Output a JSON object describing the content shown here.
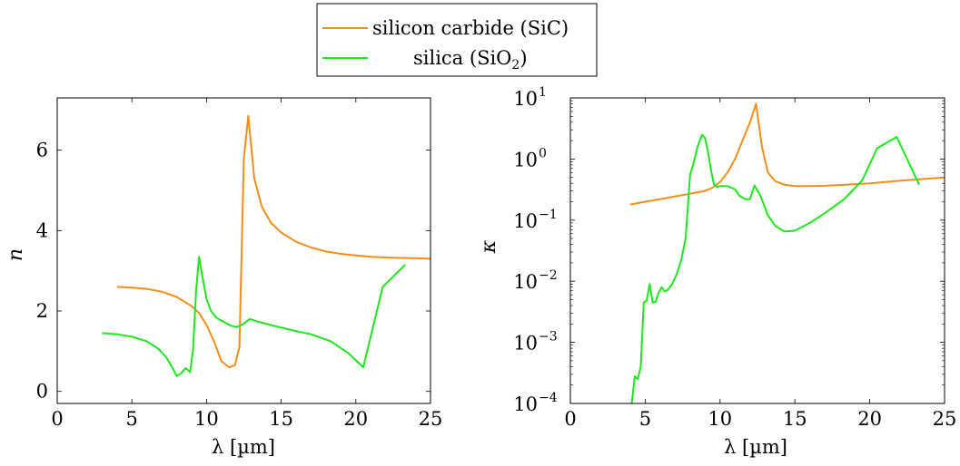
{
  "legend": {
    "placement": "top-center",
    "entries": [
      {
        "name": "silicon carbide (SiC)",
        "color": "#f28e1c"
      },
      {
        "name": "silica (SiO2)",
        "color": "#1fe61f"
      }
    ]
  },
  "chart_data": [
    {
      "type": "line",
      "xlabel": "λ [µm]",
      "ylabel": "n",
      "xlim": [
        0,
        25
      ],
      "ylim": [
        -0.3,
        7.3
      ],
      "xticks": [
        0,
        5,
        10,
        15,
        20,
        25
      ],
      "yticks": [
        0,
        2,
        4,
        6
      ],
      "series": [
        {
          "name": "silicon carbide (SiC)",
          "color": "#f28e1c",
          "x": [
            4.0,
            5.0,
            6.0,
            7.0,
            8.0,
            9.0,
            9.5,
            10.0,
            10.5,
            11.0,
            11.5,
            11.9,
            12.2,
            12.5,
            12.8,
            13.2,
            13.7,
            14.3,
            15.0,
            16.0,
            17.0,
            18.0,
            19.0,
            20.0,
            21.0,
            22.0,
            23.0,
            24.0,
            25.0
          ],
          "y": [
            2.6,
            2.58,
            2.55,
            2.48,
            2.35,
            2.12,
            1.95,
            1.65,
            1.25,
            0.75,
            0.6,
            0.65,
            1.1,
            5.8,
            6.85,
            5.3,
            4.6,
            4.2,
            3.95,
            3.72,
            3.58,
            3.48,
            3.42,
            3.38,
            3.35,
            3.33,
            3.32,
            3.31,
            3.3
          ]
        },
        {
          "name": "silica (SiO2)",
          "color": "#1fe61f",
          "x": [
            3.0,
            4.0,
            5.0,
            6.0,
            6.8,
            7.3,
            7.7,
            8.0,
            8.3,
            8.6,
            8.9,
            9.1,
            9.3,
            9.5,
            9.7,
            10.0,
            10.3,
            10.7,
            11.2,
            11.6,
            12.0,
            12.4,
            12.9,
            13.5,
            14.5,
            16.0,
            17.0,
            18.3,
            19.5,
            20.5,
            21.8,
            23.3
          ],
          "y": [
            1.45,
            1.42,
            1.36,
            1.25,
            1.05,
            0.85,
            0.6,
            0.38,
            0.45,
            0.58,
            0.48,
            1.05,
            2.5,
            3.35,
            2.9,
            2.3,
            2.0,
            1.82,
            1.72,
            1.64,
            1.6,
            1.66,
            1.8,
            1.73,
            1.63,
            1.5,
            1.42,
            1.25,
            0.95,
            0.6,
            2.6,
            3.15
          ]
        }
      ]
    },
    {
      "type": "line",
      "xlabel": "λ [µm]",
      "ylabel": "κ",
      "scale_y": "log",
      "xlim": [
        0,
        25
      ],
      "ylim": [
        0.0001,
        10
      ],
      "xticks": [
        0,
        5,
        10,
        15,
        20,
        25
      ],
      "ytick_values": [
        0.0001,
        0.001,
        0.01,
        0.1,
        1,
        10
      ],
      "ytick_labels": [
        [
          "10",
          "−4"
        ],
        [
          "10",
          "−3"
        ],
        [
          "10",
          "−2"
        ],
        [
          "10",
          "−1"
        ],
        [
          "10",
          "0"
        ],
        [
          "10",
          "1"
        ]
      ],
      "series": [
        {
          "name": "silicon carbide (SiC)",
          "color": "#f28e1c",
          "x": [
            4.0,
            5.0,
            6.0,
            7.0,
            8.0,
            9.0,
            9.5,
            10.0,
            10.5,
            11.0,
            11.5,
            12.0,
            12.4,
            12.8,
            13.2,
            13.7,
            14.3,
            15.0,
            16.0,
            17.0,
            18.0,
            20.0,
            22.0,
            25.0
          ],
          "y": [
            0.18,
            0.2,
            0.22,
            0.245,
            0.27,
            0.3,
            0.34,
            0.42,
            0.6,
            1.0,
            2.0,
            4.0,
            8.0,
            1.6,
            0.6,
            0.43,
            0.38,
            0.36,
            0.36,
            0.365,
            0.375,
            0.4,
            0.44,
            0.5
          ]
        },
        {
          "name": "silica (SiO2)",
          "color": "#1fe61f",
          "x": [
            4.1,
            4.3,
            4.5,
            4.7,
            4.9,
            5.1,
            5.3,
            5.5,
            5.7,
            5.9,
            6.1,
            6.3,
            6.5,
            6.8,
            7.1,
            7.4,
            7.7,
            8.0,
            8.2,
            8.5,
            8.8,
            9.0,
            9.2,
            9.4,
            9.6,
            9.8,
            10.0,
            10.5,
            11.0,
            11.3,
            11.7,
            12.0,
            12.3,
            12.7,
            13.2,
            13.7,
            14.3,
            15.0,
            16.0,
            17.0,
            18.3,
            19.5,
            20.5,
            21.8,
            23.3
          ],
          "y": [
            0.0001,
            0.00028,
            0.00025,
            0.0004,
            0.0045,
            0.0048,
            0.009,
            0.0045,
            0.0046,
            0.0065,
            0.008,
            0.0068,
            0.0072,
            0.009,
            0.013,
            0.022,
            0.05,
            0.55,
            0.8,
            1.6,
            2.5,
            2.2,
            1.3,
            0.65,
            0.38,
            0.35,
            0.36,
            0.36,
            0.32,
            0.25,
            0.22,
            0.22,
            0.37,
            0.25,
            0.12,
            0.08,
            0.065,
            0.067,
            0.09,
            0.13,
            0.22,
            0.45,
            1.5,
            2.3,
            0.38
          ]
        }
      ]
    }
  ]
}
